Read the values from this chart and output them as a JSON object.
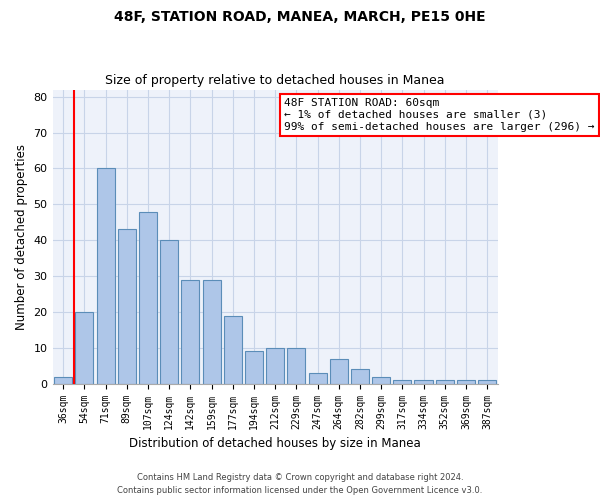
{
  "title_line1": "48F, STATION ROAD, MANEA, MARCH, PE15 0HE",
  "title_line2": "Size of property relative to detached houses in Manea",
  "xlabel": "Distribution of detached houses by size in Manea",
  "ylabel": "Number of detached properties",
  "categories": [
    "36sqm",
    "54sqm",
    "71sqm",
    "89sqm",
    "107sqm",
    "124sqm",
    "142sqm",
    "159sqm",
    "177sqm",
    "194sqm",
    "212sqm",
    "229sqm",
    "247sqm",
    "264sqm",
    "282sqm",
    "299sqm",
    "317sqm",
    "334sqm",
    "352sqm",
    "369sqm",
    "387sqm"
  ],
  "values": [
    2,
    20,
    60,
    43,
    48,
    40,
    29,
    29,
    19,
    9,
    10,
    10,
    3,
    7,
    4,
    2,
    1,
    1,
    1,
    1,
    1
  ],
  "bar_color": "#aec6e8",
  "bar_edge_color": "#5b8db8",
  "grid_color": "#c8d4e8",
  "background_color": "#eef2fa",
  "annotation_text_line1": "48F STATION ROAD: 60sqm",
  "annotation_text_line2": "← 1% of detached houses are smaller (3)",
  "annotation_text_line3": "99% of semi-detached houses are larger (296) →",
  "annotation_box_color": "white",
  "annotation_box_edge_color": "red",
  "red_line_color": "red",
  "ylim": [
    0,
    82
  ],
  "yticks": [
    0,
    10,
    20,
    30,
    40,
    50,
    60,
    70,
    80
  ],
  "footnote_line1": "Contains HM Land Registry data © Crown copyright and database right 2024.",
  "footnote_line2": "Contains public sector information licensed under the Open Government Licence v3.0."
}
